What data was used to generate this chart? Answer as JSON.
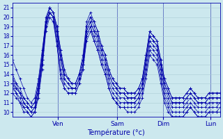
{
  "xlabel": "Température (°c)",
  "bg_color": "#cce8ee",
  "grid_color": "#aaccd4",
  "line_color": "#0000aa",
  "ylim": [
    9.5,
    21.5
  ],
  "yticks": [
    10,
    11,
    12,
    13,
    14,
    15,
    16,
    17,
    18,
    19,
    20,
    21
  ],
  "day_labels": [
    "Ven",
    "Sam",
    "Dim",
    "Lun"
  ],
  "day_positions": [
    0.22,
    0.505,
    0.725,
    0.955
  ],
  "n_points": 57,
  "series": [
    [
      15.5,
      14.5,
      13.5,
      12.5,
      11.5,
      11.0,
      11.5,
      13.5,
      16.5,
      19.5,
      21.0,
      20.5,
      19.0,
      16.5,
      14.5,
      13.5,
      13.0,
      13.0,
      14.0,
      16.0,
      19.5,
      20.5,
      19.5,
      18.5,
      17.0,
      16.0,
      14.5,
      13.5,
      13.0,
      12.5,
      12.5,
      12.0,
      12.0,
      12.0,
      12.5,
      13.5,
      16.0,
      18.5,
      18.0,
      17.5,
      15.5,
      13.5,
      12.5,
      11.5,
      11.5,
      11.5,
      11.5,
      12.0,
      12.5,
      12.0,
      11.5,
      11.5,
      11.5,
      12.0,
      12.0,
      12.0,
      12.0
    ],
    [
      14.0,
      13.0,
      12.5,
      11.5,
      11.0,
      10.5,
      11.0,
      13.0,
      16.0,
      19.5,
      20.5,
      20.0,
      18.5,
      16.0,
      14.0,
      13.5,
      13.0,
      13.0,
      14.0,
      15.5,
      19.0,
      20.0,
      19.0,
      18.0,
      16.5,
      15.5,
      14.0,
      13.0,
      12.5,
      12.0,
      12.0,
      11.5,
      11.5,
      11.5,
      12.0,
      13.0,
      15.5,
      18.0,
      17.5,
      17.0,
      15.0,
      13.0,
      12.0,
      11.0,
      11.0,
      11.0,
      11.0,
      11.5,
      12.0,
      11.5,
      11.0,
      11.0,
      11.0,
      11.5,
      11.5,
      11.5,
      11.5
    ],
    [
      13.5,
      12.5,
      12.0,
      11.0,
      10.5,
      10.0,
      10.5,
      12.5,
      15.5,
      19.0,
      20.5,
      20.0,
      18.0,
      15.5,
      13.5,
      13.0,
      12.5,
      12.5,
      13.5,
      15.0,
      18.5,
      19.5,
      18.5,
      17.5,
      16.0,
      15.0,
      13.5,
      12.5,
      12.0,
      11.5,
      11.5,
      11.0,
      11.0,
      11.0,
      11.5,
      12.5,
      15.0,
      17.5,
      17.0,
      16.5,
      14.5,
      12.5,
      11.5,
      10.5,
      10.5,
      10.5,
      10.5,
      11.0,
      11.5,
      11.0,
      10.5,
      10.5,
      10.5,
      11.0,
      11.0,
      11.0,
      11.0
    ],
    [
      13.0,
      12.0,
      11.5,
      10.5,
      10.5,
      10.0,
      10.0,
      12.0,
      15.0,
      19.0,
      20.5,
      20.0,
      17.5,
      14.5,
      13.0,
      12.5,
      12.5,
      12.5,
      13.5,
      15.0,
      18.0,
      19.0,
      18.0,
      17.0,
      15.5,
      14.5,
      13.0,
      12.0,
      11.5,
      11.0,
      11.0,
      11.0,
      11.0,
      11.0,
      11.5,
      12.5,
      14.5,
      17.0,
      16.5,
      16.0,
      14.0,
      12.0,
      11.0,
      10.0,
      10.0,
      10.0,
      10.0,
      10.5,
      11.0,
      10.5,
      10.0,
      10.0,
      10.0,
      10.5,
      10.5,
      10.5,
      11.0
    ],
    [
      12.5,
      12.0,
      11.0,
      10.5,
      10.0,
      9.5,
      10.0,
      12.0,
      15.0,
      19.0,
      20.5,
      20.0,
      17.0,
      14.0,
      12.5,
      12.0,
      12.0,
      12.0,
      13.0,
      14.5,
      18.0,
      19.0,
      17.5,
      16.5,
      15.0,
      14.0,
      12.5,
      11.5,
      11.0,
      10.5,
      10.5,
      10.5,
      10.5,
      10.5,
      11.0,
      12.0,
      14.0,
      16.5,
      16.0,
      15.5,
      13.5,
      11.5,
      10.5,
      9.5,
      9.5,
      9.5,
      9.5,
      10.0,
      10.5,
      10.0,
      9.5,
      9.5,
      9.5,
      10.0,
      10.0,
      10.0,
      10.5
    ],
    [
      12.0,
      11.5,
      11.0,
      10.0,
      10.0,
      9.5,
      10.0,
      11.5,
      14.5,
      18.5,
      20.0,
      19.5,
      17.0,
      13.5,
      12.5,
      12.0,
      12.0,
      12.0,
      13.0,
      14.5,
      17.5,
      18.5,
      17.5,
      16.5,
      15.0,
      14.0,
      12.5,
      11.5,
      11.0,
      10.5,
      10.5,
      10.0,
      10.0,
      10.0,
      10.5,
      11.5,
      13.5,
      16.0,
      15.5,
      15.0,
      13.0,
      11.0,
      10.0,
      9.5,
      9.5,
      9.5,
      9.5,
      10.0,
      10.5,
      10.0,
      9.5,
      9.5,
      9.5,
      10.0,
      10.0,
      10.0,
      10.0
    ],
    [
      13.0,
      12.5,
      12.0,
      11.0,
      10.5,
      10.0,
      10.5,
      12.5,
      15.5,
      19.5,
      21.0,
      20.5,
      18.5,
      15.5,
      13.5,
      13.0,
      12.5,
      12.5,
      13.5,
      15.0,
      18.5,
      19.5,
      18.5,
      18.0,
      16.5,
      15.5,
      14.0,
      13.0,
      12.5,
      12.0,
      12.0,
      11.5,
      11.5,
      11.5,
      12.0,
      13.0,
      15.5,
      18.0,
      17.5,
      17.0,
      15.0,
      13.0,
      12.0,
      11.0,
      11.0,
      11.0,
      11.0,
      11.5,
      12.0,
      11.5,
      11.0,
      11.0,
      11.0,
      11.5,
      11.5,
      11.5,
      11.5
    ],
    [
      13.5,
      13.0,
      12.0,
      11.5,
      11.0,
      10.5,
      11.0,
      13.0,
      16.0,
      20.0,
      21.0,
      20.5,
      19.0,
      16.5,
      14.0,
      13.5,
      13.0,
      13.0,
      14.0,
      15.5,
      19.0,
      20.0,
      19.5,
      18.5,
      17.0,
      16.0,
      14.5,
      13.5,
      13.0,
      12.5,
      12.5,
      12.0,
      12.0,
      12.0,
      12.5,
      13.5,
      16.0,
      18.5,
      18.0,
      17.5,
      15.5,
      13.5,
      12.5,
      11.5,
      11.5,
      11.5,
      11.5,
      12.0,
      12.5,
      12.0,
      11.5,
      11.5,
      11.5,
      12.0,
      12.0,
      12.0,
      12.0
    ]
  ]
}
